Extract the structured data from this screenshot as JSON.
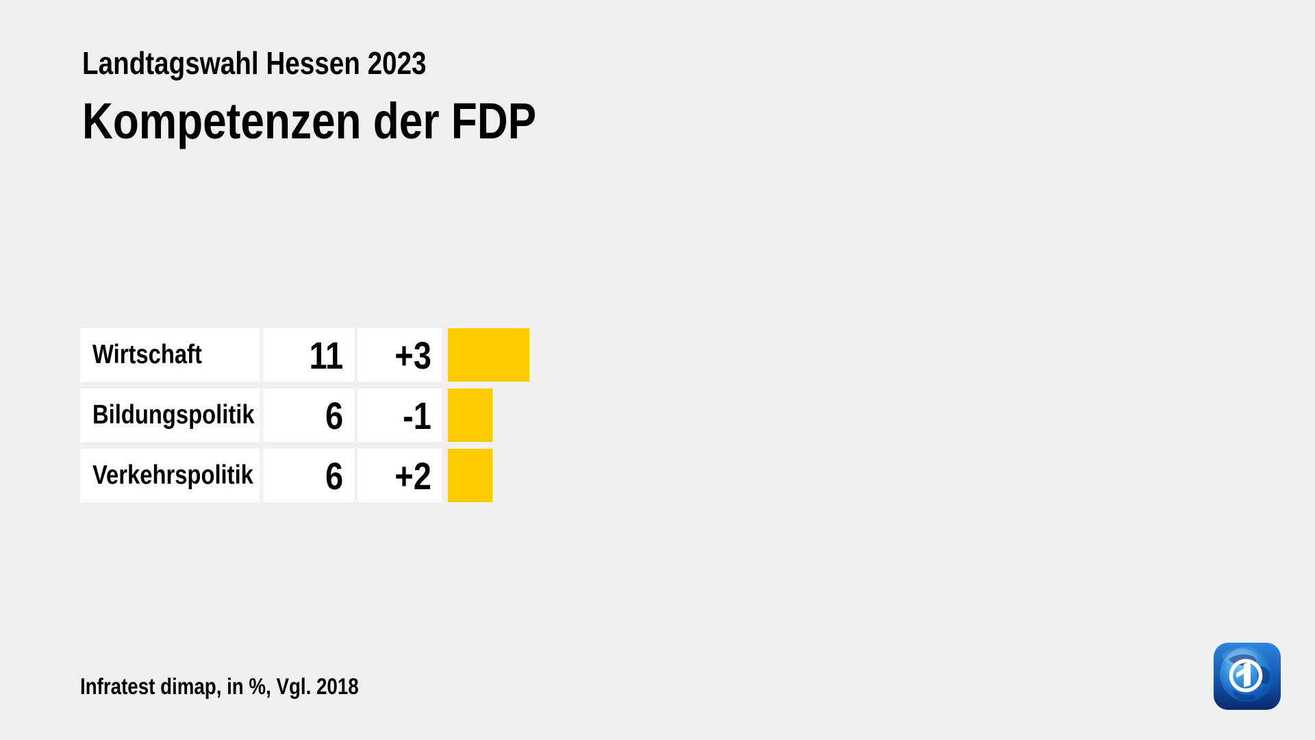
{
  "header": {
    "subtitle": "Landtagswahl Hessen 2023",
    "title": "Kompetenzen der FDP"
  },
  "chart_data": {
    "type": "bar",
    "orientation": "horizontal",
    "title": "Kompetenzen der FDP",
    "subtitle": "Landtagswahl Hessen 2023",
    "categories": [
      "Wirtschaft",
      "Bildungspolitik",
      "Verkehrspolitik"
    ],
    "values": [
      11,
      6,
      6
    ],
    "changes": [
      "+3",
      "-1",
      "+2"
    ],
    "unit": "%",
    "comparison_year": "2018",
    "xlim": [
      0,
      11
    ],
    "grid": false,
    "legend": false,
    "bar_color": "#ffcc00"
  },
  "footer": {
    "source": "Infratest dimap, in %, Vgl. 2018"
  },
  "colors": {
    "background": "#f0f0f0",
    "cell": "#ffffff",
    "bar": "#ffcc00",
    "text": "#000000"
  },
  "logo": {
    "name": "ard-tagesschau-logo"
  }
}
